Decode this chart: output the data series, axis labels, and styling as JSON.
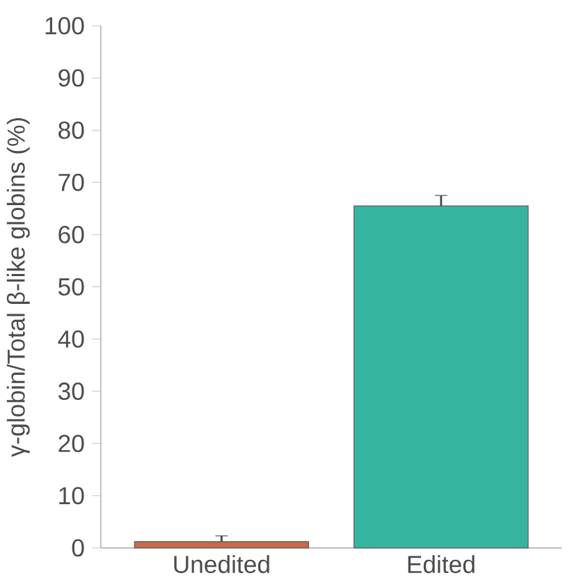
{
  "chart_data": {
    "type": "bar",
    "ylabel": "γ-globin/Total β-like globins (%)",
    "categories": [
      "Unedited",
      "Edited"
    ],
    "values": [
      1.2,
      65.5
    ],
    "errors": [
      1.1,
      2
    ],
    "colors": [
      "#c8694a",
      "#35b5a0"
    ],
    "ylim": [
      0,
      100
    ],
    "yticks": [
      0,
      10,
      20,
      30,
      40,
      50,
      60,
      70,
      80,
      90,
      100
    ],
    "grid": false
  }
}
